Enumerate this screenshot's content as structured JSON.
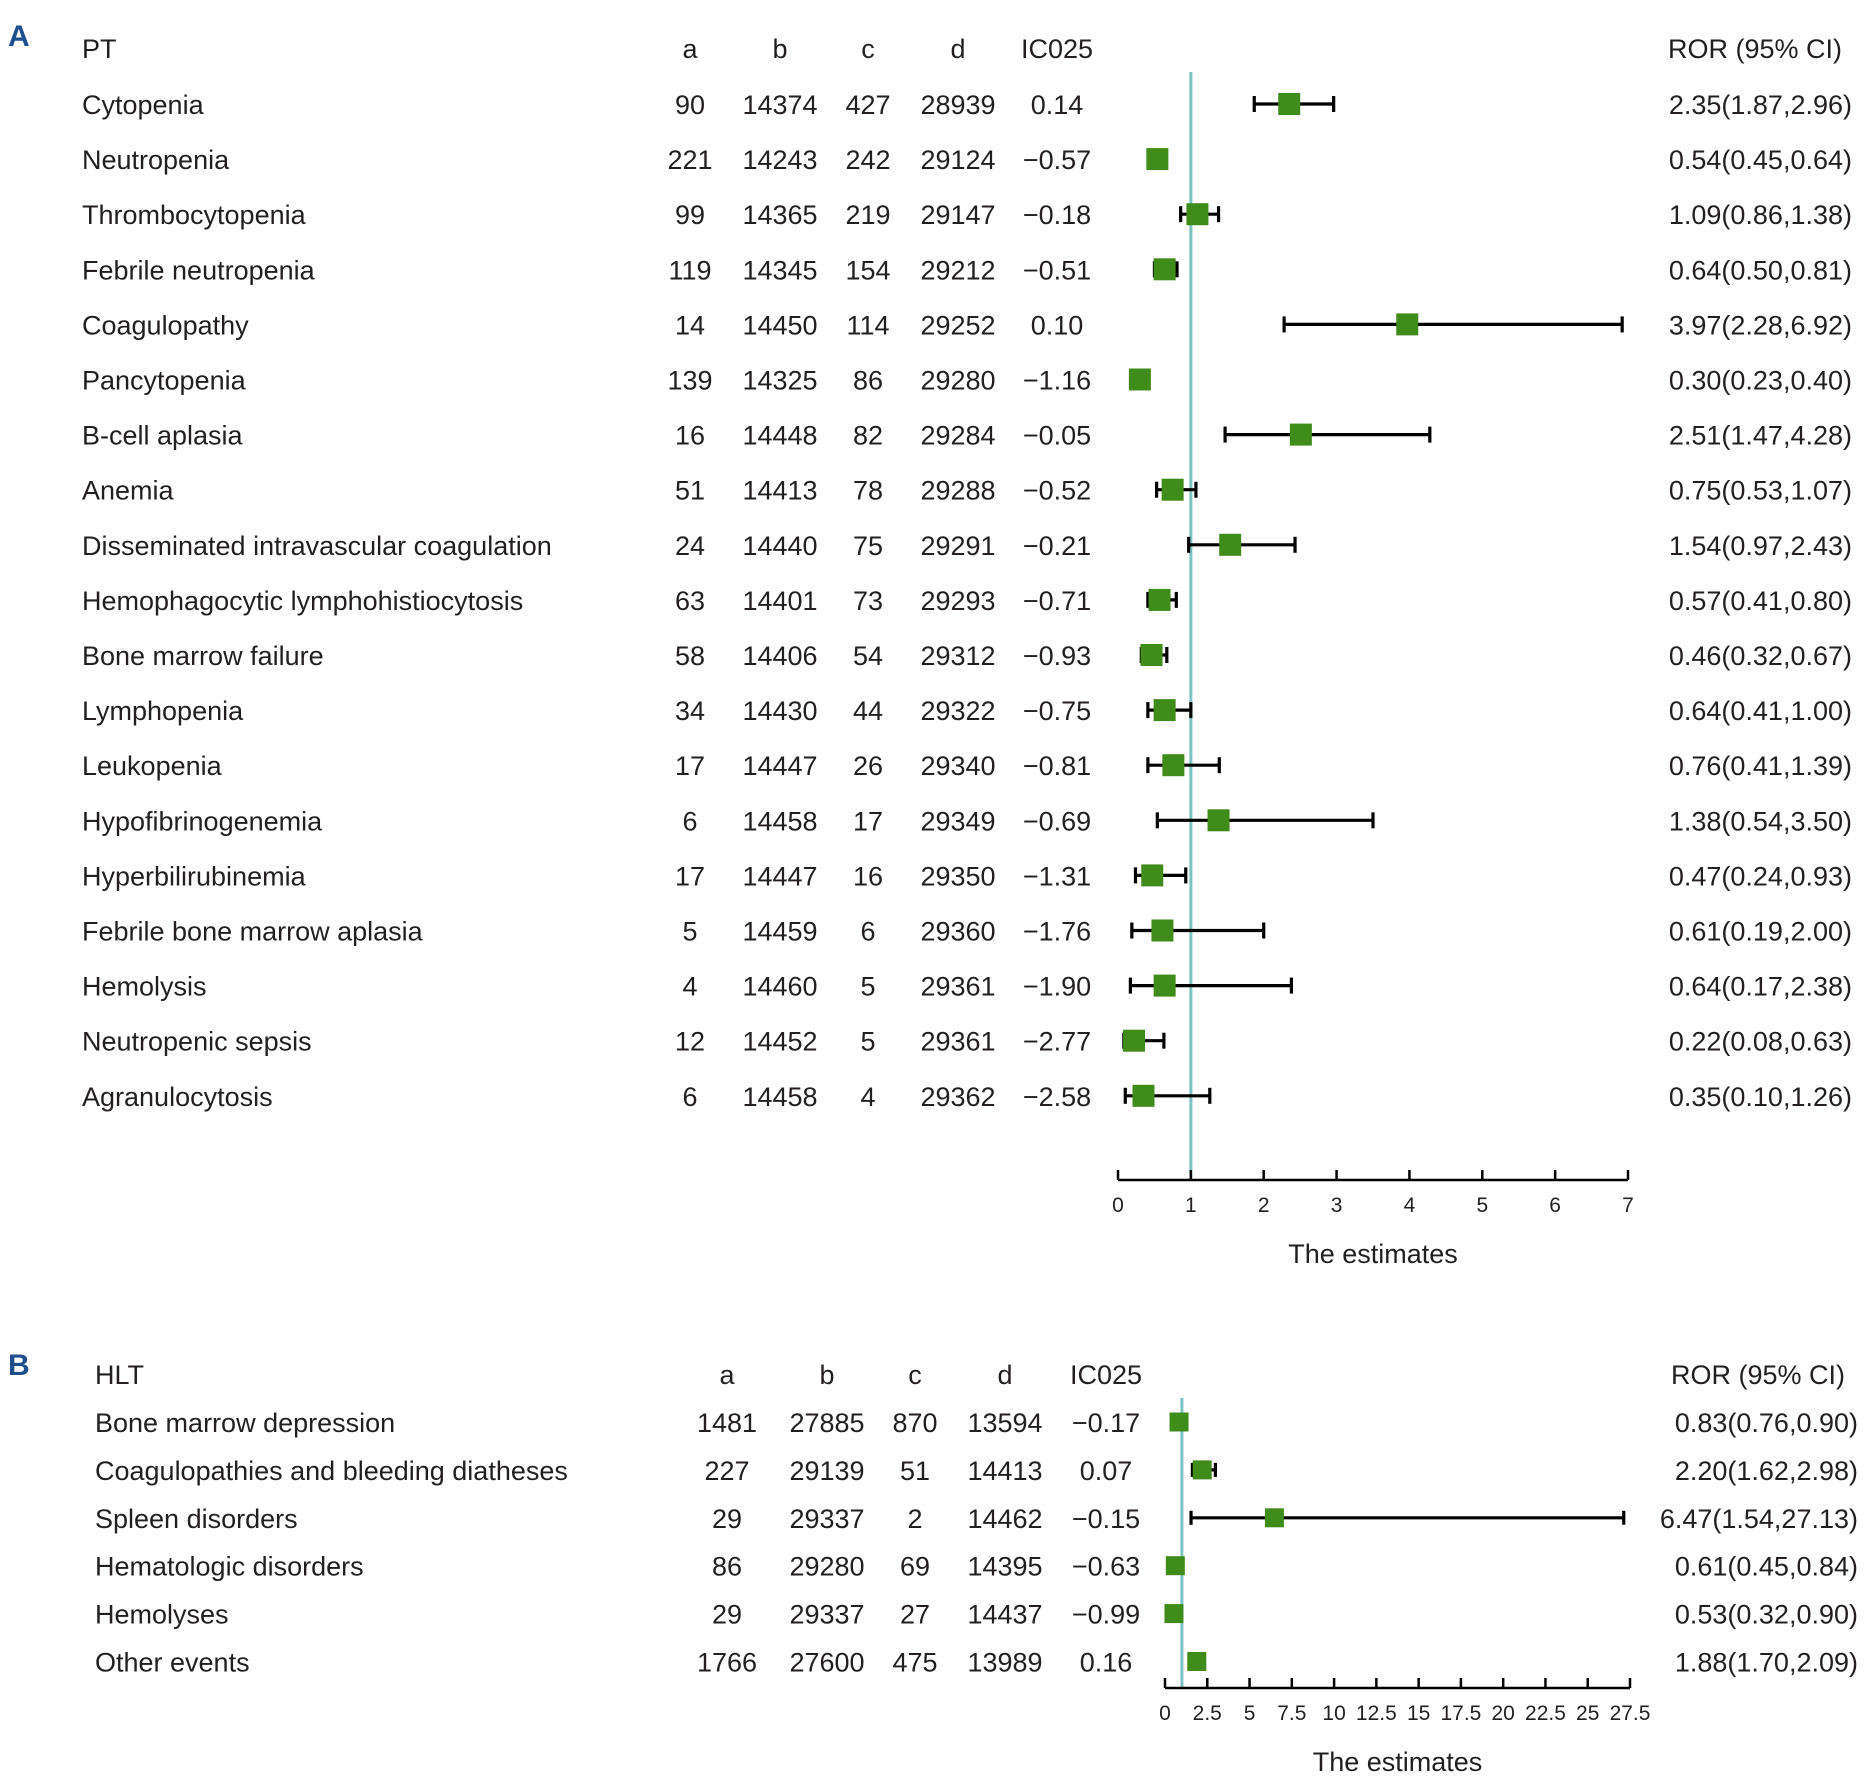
{
  "colors": {
    "text": "#231f20",
    "marker": "#3f8c1a",
    "reference_line": "#7cc4c4",
    "panel_label": "#1f4e8c",
    "whisker": "#000000"
  },
  "chart_data": [
    {
      "type": "forest",
      "panel": "A",
      "columns": [
        "PT",
        "a",
        "b",
        "c",
        "d",
        "IC025",
        "ROR (95% CI)"
      ],
      "xlabel": "The estimates",
      "xlim": [
        0,
        7
      ],
      "xticks": [
        0,
        1,
        2,
        3,
        4,
        5,
        6,
        7
      ],
      "reference_value": 1,
      "rows": [
        {
          "name": "Cytopenia",
          "a": "90",
          "b": "14374",
          "c": "427",
          "d": "28939",
          "ic": "0.14",
          "ror": 2.35,
          "low": 1.87,
          "high": 2.96,
          "label": "2.35(1.87,2.96)"
        },
        {
          "name": "Neutropenia",
          "a": "221",
          "b": "14243",
          "c": "242",
          "d": "29124",
          "ic": "−0.57",
          "ror": 0.54,
          "low": 0.45,
          "high": 0.64,
          "label": "0.54(0.45,0.64)"
        },
        {
          "name": "Thrombocytopenia",
          "a": "99",
          "b": "14365",
          "c": "219",
          "d": "29147",
          "ic": "−0.18",
          "ror": 1.09,
          "low": 0.86,
          "high": 1.38,
          "label": "1.09(0.86,1.38)"
        },
        {
          "name": "Febrile neutropenia",
          "a": "119",
          "b": "14345",
          "c": "154",
          "d": "29212",
          "ic": "−0.51",
          "ror": 0.64,
          "low": 0.5,
          "high": 0.81,
          "label": "0.64(0.50,0.81)"
        },
        {
          "name": "Coagulopathy",
          "a": "14",
          "b": "14450",
          "c": "114",
          "d": "29252",
          "ic": "0.10",
          "ror": 3.97,
          "low": 2.28,
          "high": 6.92,
          "label": "3.97(2.28,6.92)"
        },
        {
          "name": "Pancytopenia",
          "a": "139",
          "b": "14325",
          "c": "86",
          "d": "29280",
          "ic": "−1.16",
          "ror": 0.3,
          "low": 0.23,
          "high": 0.4,
          "label": "0.30(0.23,0.40)"
        },
        {
          "name": "B-cell aplasia",
          "a": "16",
          "b": "14448",
          "c": "82",
          "d": "29284",
          "ic": "−0.05",
          "ror": 2.51,
          "low": 1.47,
          "high": 4.28,
          "label": "2.51(1.47,4.28)"
        },
        {
          "name": "Anemia",
          "a": "51",
          "b": "14413",
          "c": "78",
          "d": "29288",
          "ic": "−0.52",
          "ror": 0.75,
          "low": 0.53,
          "high": 1.07,
          "label": "0.75(0.53,1.07)"
        },
        {
          "name": "Disseminated intravascular coagulation",
          "a": "24",
          "b": "14440",
          "c": "75",
          "d": "29291",
          "ic": "−0.21",
          "ror": 1.54,
          "low": 0.97,
          "high": 2.43,
          "label": "1.54(0.97,2.43)"
        },
        {
          "name": "Hemophagocytic lymphohistiocytosis",
          "a": "63",
          "b": "14401",
          "c": "73",
          "d": "29293",
          "ic": "−0.71",
          "ror": 0.57,
          "low": 0.41,
          "high": 0.8,
          "label": "0.57(0.41,0.80)"
        },
        {
          "name": "Bone marrow failure",
          "a": "58",
          "b": "14406",
          "c": "54",
          "d": "29312",
          "ic": "−0.93",
          "ror": 0.46,
          "low": 0.32,
          "high": 0.67,
          "label": "0.46(0.32,0.67)"
        },
        {
          "name": "Lymphopenia",
          "a": "34",
          "b": "14430",
          "c": "44",
          "d": "29322",
          "ic": "−0.75",
          "ror": 0.64,
          "low": 0.41,
          "high": 1.0,
          "label": "0.64(0.41,1.00)"
        },
        {
          "name": "Leukopenia",
          "a": "17",
          "b": "14447",
          "c": "26",
          "d": "29340",
          "ic": "−0.81",
          "ror": 0.76,
          "low": 0.41,
          "high": 1.39,
          "label": "0.76(0.41,1.39)"
        },
        {
          "name": "Hypofibrinogenemia",
          "a": "6",
          "b": "14458",
          "c": "17",
          "d": "29349",
          "ic": "−0.69",
          "ror": 1.38,
          "low": 0.54,
          "high": 3.5,
          "label": "1.38(0.54,3.50)"
        },
        {
          "name": "Hyperbilirubinemia",
          "a": "17",
          "b": "14447",
          "c": "16",
          "d": "29350",
          "ic": "−1.31",
          "ror": 0.47,
          "low": 0.24,
          "high": 0.93,
          "label": "0.47(0.24,0.93)"
        },
        {
          "name": "Febrile bone marrow aplasia",
          "a": "5",
          "b": "14459",
          "c": "6",
          "d": "29360",
          "ic": "−1.76",
          "ror": 0.61,
          "low": 0.19,
          "high": 2.0,
          "label": "0.61(0.19,2.00)"
        },
        {
          "name": "Hemolysis",
          "a": "4",
          "b": "14460",
          "c": "5",
          "d": "29361",
          "ic": "−1.90",
          "ror": 0.64,
          "low": 0.17,
          "high": 2.38,
          "label": "0.64(0.17,2.38)"
        },
        {
          "name": "Neutropenic sepsis",
          "a": "12",
          "b": "14452",
          "c": "5",
          "d": "29361",
          "ic": "−2.77",
          "ror": 0.22,
          "low": 0.08,
          "high": 0.63,
          "label": "0.22(0.08,0.63)"
        },
        {
          "name": "Agranulocytosis",
          "a": "6",
          "b": "14458",
          "c": "4",
          "d": "29362",
          "ic": "−2.58",
          "ror": 0.35,
          "low": 0.1,
          "high": 1.26,
          "label": "0.35(0.10,1.26)"
        }
      ]
    },
    {
      "type": "forest",
      "panel": "B",
      "columns": [
        "HLT",
        "a",
        "b",
        "c",
        "d",
        "IC025",
        "ROR (95% CI)"
      ],
      "xlabel": "The estimates",
      "xlim": [
        0,
        27.5
      ],
      "xticks": [
        0,
        2.5,
        5,
        7.5,
        10,
        12.5,
        15,
        17.5,
        20,
        22.5,
        25,
        27.5
      ],
      "reference_value": 1,
      "rows": [
        {
          "name": "Bone marrow depression",
          "a": "1481",
          "b": "27885",
          "c": "870",
          "d": "13594",
          "ic": "−0.17",
          "ror": 0.83,
          "low": 0.76,
          "high": 0.9,
          "label": "0.83(0.76,0.90)"
        },
        {
          "name": "Coagulopathies and bleeding diatheses",
          "a": "227",
          "b": "29139",
          "c": "51",
          "d": "14413",
          "ic": "0.07",
          "ror": 2.2,
          "low": 1.62,
          "high": 2.98,
          "label": "2.20(1.62,2.98)"
        },
        {
          "name": "Spleen disorders",
          "a": "29",
          "b": "29337",
          "c": "2",
          "d": "14462",
          "ic": "−0.15",
          "ror": 6.47,
          "low": 1.54,
          "high": 27.13,
          "label": "6.47(1.54,27.13)"
        },
        {
          "name": "Hematologic disorders",
          "a": "86",
          "b": "29280",
          "c": "69",
          "d": "14395",
          "ic": "−0.63",
          "ror": 0.61,
          "low": 0.45,
          "high": 0.84,
          "label": "0.61(0.45,0.84)"
        },
        {
          "name": "Hemolyses",
          "a": "29",
          "b": "29337",
          "c": "27",
          "d": "14437",
          "ic": "−0.99",
          "ror": 0.53,
          "low": 0.32,
          "high": 0.9,
          "label": "0.53(0.32,0.90)"
        },
        {
          "name": "Other events",
          "a": "1766",
          "b": "27600",
          "c": "475",
          "d": "13989",
          "ic": "0.16",
          "ror": 1.88,
          "low": 1.7,
          "high": 2.09,
          "label": "1.88(1.70,2.09)"
        }
      ]
    }
  ]
}
